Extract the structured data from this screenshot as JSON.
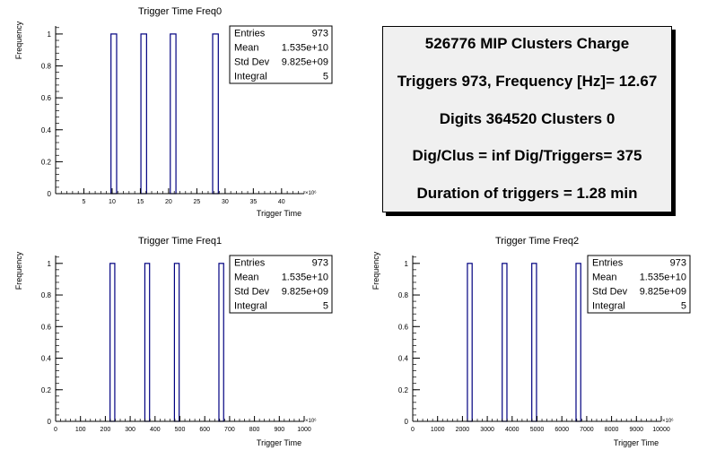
{
  "chart_data": [
    {
      "type": "bar",
      "title": "Trigger Time Freq0",
      "xlabel": "Trigger Time",
      "ylabel": "Frequency",
      "xlim": [
        0,
        44
      ],
      "x_exponent": "×10⁶",
      "xticks": [
        5,
        10,
        15,
        20,
        25,
        30,
        35,
        40
      ],
      "ylim": [
        0,
        1.05
      ],
      "yticks": [
        "0",
        "0.2",
        "0.4",
        "0.6",
        "0.8",
        "1"
      ],
      "bins": [
        {
          "x0": 9.8,
          "x1": 10.8,
          "value": 1
        },
        {
          "x0": 15.1,
          "x1": 16.1,
          "value": 1
        },
        {
          "x0": 20.3,
          "x1": 21.3,
          "value": 1
        },
        {
          "x0": 27.8,
          "x1": 28.8,
          "value": 1
        }
      ],
      "stats": [
        {
          "label": "Entries",
          "value": "973"
        },
        {
          "label": "Mean",
          "value": "1.535e+10"
        },
        {
          "label": "Std Dev",
          "value": "9.825e+09"
        },
        {
          "label": "Integral",
          "value": "5"
        }
      ]
    },
    {
      "type": "bar",
      "title": "Trigger Time Freq1",
      "xlabel": "Trigger Time",
      "ylabel": "Frequency",
      "xlim": [
        0,
        1000
      ],
      "x_exponent": "×10⁶",
      "xticks": [
        0,
        100,
        200,
        300,
        400,
        500,
        600,
        700,
        800,
        900,
        1000
      ],
      "ylim": [
        0,
        1.05
      ],
      "yticks": [
        "0",
        "0.2",
        "0.4",
        "0.6",
        "0.8",
        "1"
      ],
      "bins": [
        {
          "x0": 219,
          "x1": 238,
          "value": 1
        },
        {
          "x0": 359,
          "x1": 378,
          "value": 1
        },
        {
          "x0": 478,
          "x1": 497,
          "value": 1
        },
        {
          "x0": 657,
          "x1": 676,
          "value": 1
        }
      ],
      "stats": [
        {
          "label": "Entries",
          "value": "973"
        },
        {
          "label": "Mean",
          "value": "1.535e+10"
        },
        {
          "label": "Std Dev",
          "value": "9.825e+09"
        },
        {
          "label": "Integral",
          "value": "5"
        }
      ]
    },
    {
      "type": "bar",
      "title": "Trigger Time Freq2",
      "xlabel": "Trigger Time",
      "ylabel": "Frequency",
      "xlim": [
        0,
        10000
      ],
      "x_exponent": "×10⁶",
      "xticks": [
        0,
        1000,
        2000,
        3000,
        4000,
        5000,
        6000,
        7000,
        8000,
        9000,
        10000
      ],
      "ylim": [
        0,
        1.05
      ],
      "yticks": [
        "0",
        "0.2",
        "0.4",
        "0.6",
        "0.8",
        "1"
      ],
      "bins": [
        {
          "x0": 2200,
          "x1": 2390,
          "value": 1
        },
        {
          "x0": 3600,
          "x1": 3790,
          "value": 1
        },
        {
          "x0": 4790,
          "x1": 4980,
          "value": 1
        },
        {
          "x0": 6570,
          "x1": 6760,
          "value": 1
        }
      ],
      "stats": [
        {
          "label": "Entries",
          "value": "973"
        },
        {
          "label": "Mean",
          "value": "1.535e+10"
        },
        {
          "label": "Std Dev",
          "value": "9.825e+09"
        },
        {
          "label": "Integral",
          "value": "5"
        }
      ]
    }
  ],
  "info_panel": {
    "lines": [
      "526776 MIP Clusters Charge",
      "Triggers 973, Frequency [Hz]= 12.67",
      "Digits 364520 Clusters 0",
      "Dig/Clus = inf Dig/Triggers= 375",
      "Duration of triggers = 1.28 min"
    ]
  }
}
